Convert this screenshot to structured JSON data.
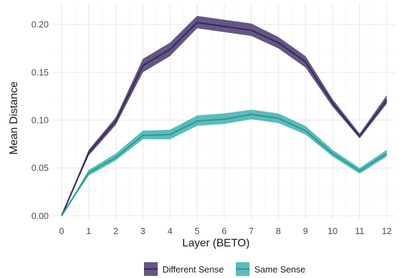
{
  "chart_data": {
    "type": "line",
    "title": "",
    "xlabel": "Layer (BETO)",
    "ylabel": "Mean Distance",
    "x": [
      0,
      1,
      2,
      3,
      4,
      5,
      6,
      7,
      8,
      9,
      10,
      11,
      12
    ],
    "x_ticks": [
      "0",
      "1",
      "2",
      "3",
      "4",
      "5",
      "6",
      "7",
      "8",
      "9",
      "10",
      "11",
      "12"
    ],
    "y_ticks": [
      "0.00",
      "0.05",
      "0.10",
      "0.15",
      "0.20"
    ],
    "y_tick_values": [
      0.0,
      0.05,
      0.1,
      0.15,
      0.2
    ],
    "xlim": [
      -0.3,
      12.3
    ],
    "ylim": [
      -0.004,
      0.222
    ],
    "grid": true,
    "legend_position": "bottom",
    "series": [
      {
        "name": "Different Sense",
        "color": "#3b2a5c",
        "band_color": "#4a3a6e",
        "values": [
          0.0,
          0.066,
          0.099,
          0.157,
          0.174,
          0.202,
          0.198,
          0.194,
          0.181,
          0.161,
          0.118,
          0.083,
          0.121
        ],
        "lower": [
          0.0,
          0.063,
          0.095,
          0.15,
          0.167,
          0.196,
          0.192,
          0.188,
          0.175,
          0.155,
          0.114,
          0.081,
          0.117
        ],
        "upper": [
          0.0,
          0.069,
          0.103,
          0.164,
          0.181,
          0.209,
          0.205,
          0.201,
          0.187,
          0.167,
          0.122,
          0.086,
          0.126
        ]
      },
      {
        "name": "Same Sense",
        "color": "#2a9d9a",
        "band_color": "#3fb0ad",
        "values": [
          0.0,
          0.045,
          0.061,
          0.084,
          0.085,
          0.099,
          0.101,
          0.106,
          0.102,
          0.089,
          0.065,
          0.047,
          0.065
        ],
        "lower": [
          0.0,
          0.042,
          0.058,
          0.08,
          0.08,
          0.094,
          0.096,
          0.101,
          0.097,
          0.085,
          0.062,
          0.044,
          0.062
        ],
        "upper": [
          0.0,
          0.048,
          0.065,
          0.089,
          0.09,
          0.105,
          0.107,
          0.111,
          0.107,
          0.094,
          0.069,
          0.05,
          0.069
        ]
      }
    ]
  }
}
